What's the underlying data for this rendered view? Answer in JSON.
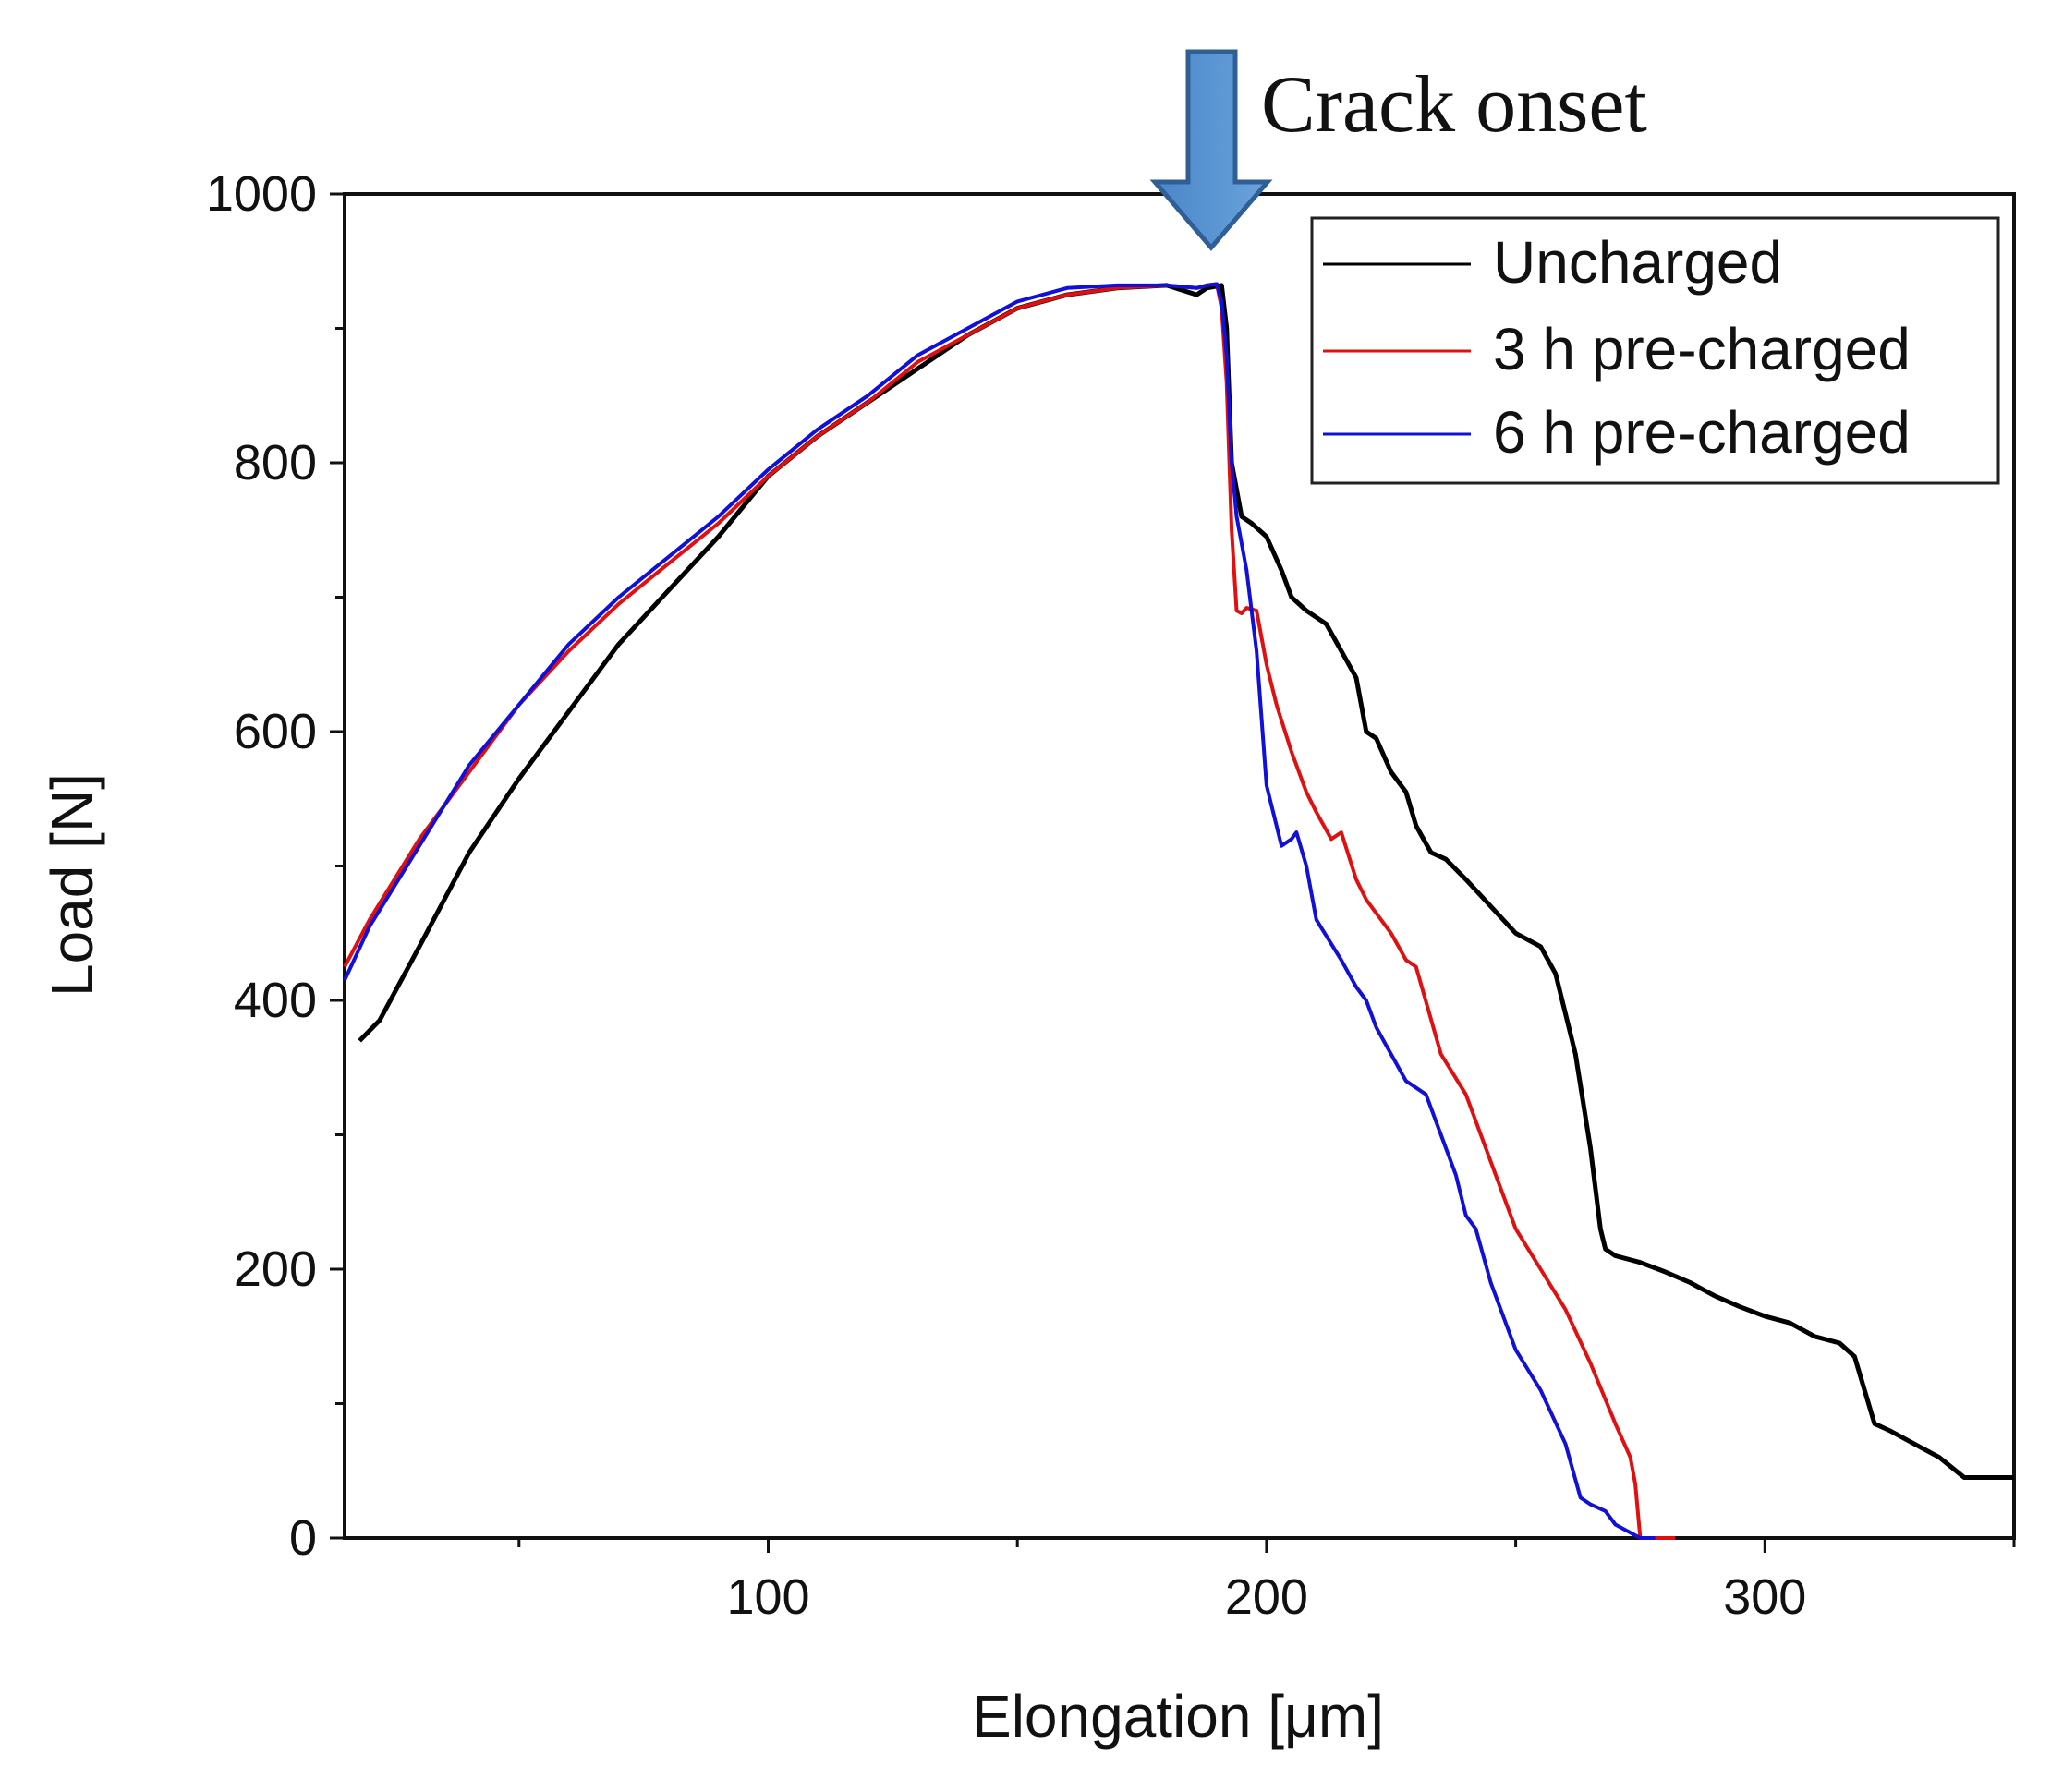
{
  "chart_data": {
    "type": "line",
    "title": "",
    "xlabel": "Elongation [μm]",
    "ylabel": "Load [N]",
    "xlim": [
      15,
      350
    ],
    "ylim": [
      0,
      1000
    ],
    "x_ticks": [
      100,
      200,
      300
    ],
    "y_ticks": [
      0,
      200,
      400,
      600,
      800,
      1000
    ],
    "grid": false,
    "legend_position": "top-right",
    "annotation": {
      "label": "Crack onset",
      "x": 188
    },
    "series": [
      {
        "name": "Uncharged",
        "color": "#000000",
        "x": [
          18,
          22,
          30,
          40,
          50,
          60,
          70,
          80,
          90,
          100,
          110,
          120,
          130,
          140,
          150,
          160,
          170,
          180,
          186,
          188,
          191,
          192,
          193,
          195,
          197,
          200,
          203,
          205,
          208,
          212,
          215,
          218,
          220,
          222,
          225,
          228,
          230,
          233,
          236,
          240,
          245,
          250,
          255,
          258,
          262,
          265,
          267,
          268,
          270,
          275,
          280,
          285,
          290,
          295,
          300,
          305,
          310,
          315,
          318,
          320,
          322,
          325,
          330,
          335,
          340,
          345,
          350
        ],
        "y": [
          370,
          385,
          440,
          510,
          565,
          615,
          665,
          705,
          745,
          790,
          820,
          845,
          870,
          895,
          915,
          925,
          930,
          932,
          925,
          930,
          932,
          900,
          800,
          760,
          755,
          745,
          720,
          700,
          690,
          680,
          660,
          640,
          600,
          595,
          570,
          555,
          530,
          510,
          505,
          490,
          470,
          450,
          440,
          420,
          360,
          290,
          230,
          215,
          210,
          205,
          198,
          190,
          180,
          172,
          165,
          160,
          150,
          145,
          135,
          110,
          85,
          80,
          70,
          60,
          45,
          45,
          45
        ]
      },
      {
        "name": "3 h pre-charged",
        "color": "#e01010",
        "x": [
          15,
          20,
          30,
          40,
          50,
          60,
          70,
          80,
          90,
          100,
          110,
          120,
          130,
          140,
          150,
          160,
          170,
          180,
          186,
          188,
          190,
          191,
          192,
          193,
          194,
          195,
          196,
          198,
          200,
          202,
          205,
          208,
          210,
          213,
          215,
          218,
          220,
          225,
          228,
          230,
          235,
          240,
          245,
          250,
          255,
          260,
          265,
          270,
          273,
          274,
          275,
          280,
          282
        ],
        "y": [
          425,
          460,
          520,
          570,
          620,
          660,
          695,
          725,
          755,
          790,
          820,
          845,
          875,
          895,
          915,
          925,
          930,
          932,
          930,
          932,
          933,
          915,
          860,
          750,
          690,
          688,
          692,
          690,
          650,
          620,
          585,
          555,
          540,
          520,
          525,
          490,
          475,
          450,
          430,
          425,
          360,
          330,
          280,
          230,
          200,
          170,
          130,
          85,
          60,
          40,
          0,
          0,
          0
        ]
      },
      {
        "name": "6 h pre-charged",
        "color": "#1010d8",
        "x": [
          15,
          20,
          30,
          40,
          50,
          60,
          70,
          80,
          90,
          100,
          110,
          120,
          130,
          140,
          150,
          160,
          170,
          180,
          186,
          188,
          190,
          191,
          192,
          193,
          194,
          195,
          196,
          198,
          200,
          203,
          205,
          206,
          208,
          210,
          215,
          218,
          220,
          222,
          225,
          228,
          232,
          235,
          238,
          240,
          242,
          245,
          248,
          250,
          255,
          260,
          263,
          265,
          268,
          270,
          275,
          278
        ],
        "y": [
          415,
          455,
          515,
          575,
          620,
          665,
          700,
          730,
          760,
          795,
          825,
          850,
          880,
          900,
          920,
          930,
          932,
          932,
          930,
          932,
          933,
          920,
          880,
          800,
          760,
          740,
          720,
          660,
          560,
          515,
          520,
          525,
          500,
          460,
          430,
          410,
          400,
          380,
          360,
          340,
          330,
          300,
          270,
          240,
          230,
          190,
          160,
          140,
          110,
          70,
          30,
          25,
          20,
          10,
          0,
          0
        ]
      }
    ]
  }
}
